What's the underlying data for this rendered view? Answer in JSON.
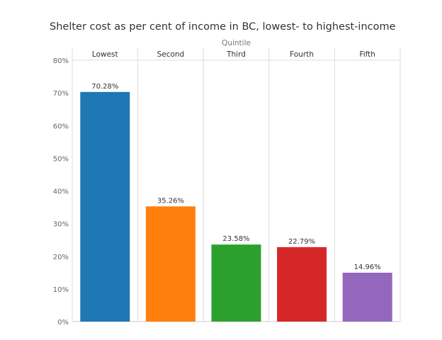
{
  "chart_data": {
    "type": "bar",
    "title": "Shelter cost as per cent of income in BC, lowest- to highest-income",
    "column_axis_title": "Quintile",
    "categories": [
      "Lowest",
      "Second",
      "Third",
      "Fourth",
      "Fifth"
    ],
    "values": [
      70.28,
      35.26,
      23.58,
      22.79,
      14.96
    ],
    "data_labels": [
      "70.28%",
      "35.26%",
      "23.58%",
      "22.79%",
      "14.96%"
    ],
    "colors": [
      "#1f77b4",
      "#ff7f0e",
      "#2ca02c",
      "#d62728",
      "#9467bd"
    ],
    "ylim": [
      0,
      80
    ],
    "yticks": [
      0,
      10,
      20,
      30,
      40,
      50,
      60,
      70,
      80
    ],
    "ytick_labels": [
      "0%",
      "10%",
      "20%",
      "30%",
      "40%",
      "50%",
      "60%",
      "70%",
      "80%"
    ],
    "grid": "vertical column dividers only",
    "legend": "none"
  }
}
